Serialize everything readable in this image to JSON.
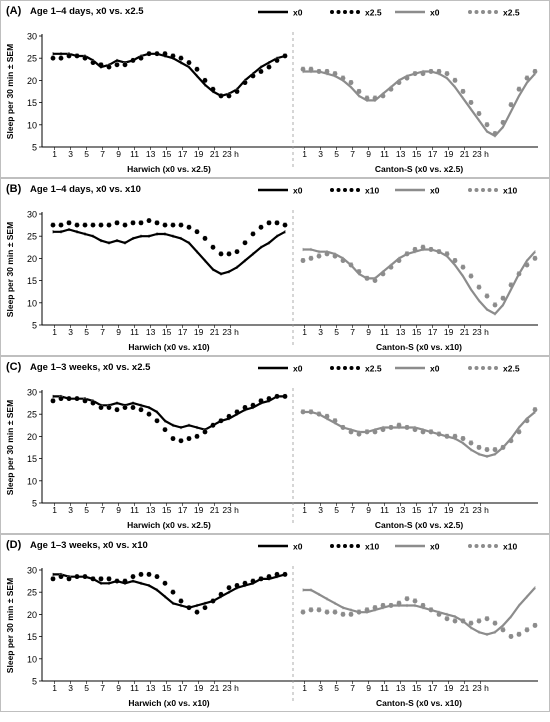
{
  "colors": {
    "black_series": "#000000",
    "gray_series": "#8c8c8c",
    "frame": "#bfbfbf"
  },
  "chart_data": [
    {
      "type": "line",
      "panel": "(A)",
      "title": "Age 1–4 days, x0 vs. x2.5",
      "ylabel": "Sleep per 30 min ± SEM",
      "ylim": [
        5,
        30
      ],
      "yticks": [
        5,
        10,
        15,
        20,
        25,
        30
      ],
      "x_ticklabels": [
        "1",
        "3",
        "5",
        "7",
        "9",
        "11",
        "13",
        "15",
        "17",
        "19",
        "21",
        "23 h"
      ],
      "grid": false,
      "legend_position": "top-right",
      "legend": [
        "x0",
        "x2.5",
        "x0",
        "x2.5"
      ],
      "left": {
        "xlabel": "Harwich (x0 vs. x2.5)",
        "series": [
          {
            "name": "x0",
            "style": "black-line",
            "values": [
              26,
              26,
              26,
              25.5,
              25.5,
              24.5,
              23,
              23.5,
              24.5,
              24,
              24.5,
              25.5,
              26,
              26,
              25.5,
              25,
              24,
              23,
              21,
              19,
              17.5,
              16.5,
              17,
              18,
              20,
              21.5,
              23,
              24,
              25,
              25.5
            ]
          },
          {
            "name": "x2.5",
            "style": "black-dots",
            "values": [
              25,
              25,
              25.5,
              25.5,
              25,
              24,
              23.5,
              23,
              23.5,
              23.5,
              24.5,
              25,
              26,
              26,
              26,
              25.5,
              25,
              24,
              22.5,
              20,
              18,
              16.5,
              16.5,
              17.5,
              19.5,
              21,
              22,
              23,
              24.5,
              25.5
            ]
          }
        ]
      },
      "right": {
        "xlabel": "Canton-S (x0 vs. x2.5)",
        "series": [
          {
            "name": "x0",
            "style": "gray-line",
            "values": [
              22,
              22,
              22,
              21.5,
              21,
              20,
              18.5,
              16.5,
              15.5,
              15.5,
              17,
              18.5,
              20,
              21,
              21.5,
              22,
              22,
              21.5,
              20.5,
              18.5,
              16,
              13.5,
              11,
              8.5,
              7.5,
              9.5,
              13,
              16.5,
              19.5,
              21.5
            ]
          },
          {
            "name": "x2.5",
            "style": "gray-dots",
            "values": [
              22.5,
              22.5,
              22,
              22,
              21.5,
              20.5,
              19.5,
              17.5,
              16,
              16,
              16.5,
              18,
              19.5,
              20.5,
              21.5,
              21.5,
              22,
              22,
              21.5,
              20,
              17.5,
              15,
              12.5,
              10,
              8,
              10.5,
              14.5,
              18,
              20.5,
              22
            ]
          }
        ]
      }
    },
    {
      "type": "line",
      "panel": "(B)",
      "title": "Age 1–4 days, x0 vs. x10",
      "ylabel": "Sleep per 30 min ± SEM",
      "ylim": [
        5,
        30
      ],
      "yticks": [
        5,
        10,
        15,
        20,
        25,
        30
      ],
      "x_ticklabels": [
        "1",
        "3",
        "5",
        "7",
        "9",
        "11",
        "13",
        "15",
        "17",
        "19",
        "21",
        "23 h"
      ],
      "grid": false,
      "legend_position": "top-right",
      "legend": [
        "x0",
        "x10",
        "x0",
        "x10"
      ],
      "left": {
        "xlabel": "Harwich (x0 vs. x10)",
        "series": [
          {
            "name": "x0",
            "style": "black-line",
            "values": [
              26,
              26,
              26.5,
              26,
              25.5,
              25,
              24,
              23.5,
              24,
              23.5,
              24.5,
              25,
              25,
              25.5,
              25.5,
              25,
              24.5,
              23.5,
              21.5,
              19.5,
              17.5,
              16.5,
              17,
              18,
              19.5,
              21,
              22.5,
              23.5,
              25,
              26
            ]
          },
          {
            "name": "x10",
            "style": "black-dots",
            "values": [
              27.5,
              27.5,
              28,
              27.5,
              27.5,
              27.5,
              27.5,
              27.5,
              28,
              27.5,
              28,
              28,
              28.5,
              28,
              27.5,
              27.5,
              27.5,
              27,
              26,
              24.5,
              22.5,
              21,
              21,
              21.5,
              23.5,
              25.5,
              27,
              28,
              28,
              27.5
            ]
          }
        ]
      },
      "right": {
        "xlabel": "Canton-S (x0 vs. x10)",
        "series": [
          {
            "name": "x0",
            "style": "gray-line",
            "values": [
              22,
              22,
              21.5,
              21.5,
              21,
              20,
              18.5,
              16.5,
              15.5,
              15.5,
              17,
              18.5,
              20,
              21,
              21.5,
              22,
              22,
              21.5,
              20.5,
              18.5,
              16,
              13,
              10.5,
              8.5,
              7.5,
              9.5,
              13,
              16.5,
              19.5,
              21.5
            ]
          },
          {
            "name": "x10",
            "style": "gray-dots",
            "values": [
              19.5,
              20,
              20.5,
              21,
              20.5,
              19.5,
              18.5,
              17,
              15.5,
              15,
              16.5,
              18,
              19.5,
              21,
              22,
              22.5,
              22,
              21.5,
              21,
              19.5,
              18,
              16,
              13.5,
              11.5,
              9.5,
              11,
              14,
              16.5,
              18.5,
              20
            ]
          }
        ]
      }
    },
    {
      "type": "line",
      "panel": "(C)",
      "title": "Age 1–3 weeks, x0 vs. x2.5",
      "ylabel": "Sleep per 30 min ± SEM",
      "ylim": [
        5,
        30
      ],
      "yticks": [
        5,
        10,
        15,
        20,
        25,
        30
      ],
      "x_ticklabels": [
        "1",
        "3",
        "5",
        "7",
        "9",
        "11",
        "13",
        "15",
        "17",
        "19",
        "21",
        "23 h"
      ],
      "grid": false,
      "legend_position": "top-right",
      "legend": [
        "x0",
        "x2.5",
        "x0",
        "x2.5"
      ],
      "left": {
        "xlabel": "Harwich (x0 vs. x2.5)",
        "series": [
          {
            "name": "x0",
            "style": "black-line",
            "values": [
              29,
              29,
              28.5,
              28.5,
              28.5,
              28,
              27,
              27,
              27.5,
              27,
              27.5,
              27,
              26.5,
              25.5,
              23.5,
              22.5,
              22,
              22.5,
              22,
              21.5,
              22.5,
              23.5,
              24,
              25,
              26,
              26.5,
              27.5,
              28,
              29,
              29
            ]
          },
          {
            "name": "x2.5",
            "style": "black-dots",
            "values": [
              28,
              28.5,
              28.5,
              28.5,
              28,
              27.5,
              26.5,
              26.5,
              26,
              26.5,
              26.5,
              26,
              25,
              23.5,
              21.5,
              19.5,
              19,
              19.5,
              20,
              21,
              22.5,
              23.5,
              24.5,
              25.5,
              26.5,
              27,
              28,
              28.5,
              29,
              29
            ]
          }
        ]
      },
      "right": {
        "xlabel": "Canton-S (x0 vs. x2.5)",
        "series": [
          {
            "name": "x0",
            "style": "gray-line",
            "values": [
              25.5,
              25.5,
              25,
              24,
              23,
              22,
              21.5,
              21,
              21,
              21.5,
              22,
              22,
              22,
              22,
              22,
              21.5,
              21,
              20.5,
              20,
              19.5,
              18.5,
              17,
              16,
              15.5,
              16,
              17.5,
              19.5,
              22,
              24,
              25.5
            ]
          },
          {
            "name": "x2.5",
            "style": "gray-dots",
            "values": [
              25.5,
              25.5,
              25,
              24.5,
              23.5,
              22,
              21,
              20.5,
              21,
              21,
              21.5,
              22,
              22.5,
              22,
              21.5,
              21,
              21,
              20.5,
              20,
              20,
              19.5,
              18.5,
              17.5,
              17,
              17,
              17.5,
              19,
              21,
              23.5,
              26
            ]
          }
        ]
      }
    },
    {
      "type": "line",
      "panel": "(D)",
      "title": "Age 1–3 weeks, x0 vs. x10",
      "ylabel": "Sleep per 30 min ± SEM",
      "ylim": [
        5,
        30
      ],
      "yticks": [
        5,
        10,
        15,
        20,
        25,
        30
      ],
      "x_ticklabels": [
        "1",
        "3",
        "5",
        "7",
        "9",
        "11",
        "13",
        "15",
        "17",
        "19",
        "21",
        "23 h"
      ],
      "grid": false,
      "legend_position": "top-right",
      "legend": [
        "x0",
        "x10",
        "x0",
        "x10"
      ],
      "left": {
        "xlabel": "Harwich (x0 vs. x10)",
        "series": [
          {
            "name": "x0",
            "style": "black-line",
            "values": [
              29,
              29,
              28.5,
              28.5,
              28.5,
              28,
              27,
              27,
              27.5,
              27,
              27.5,
              27,
              26.5,
              25.5,
              24,
              22.5,
              22,
              21.5,
              22,
              22.5,
              23,
              24,
              25,
              26,
              26.5,
              27,
              28,
              28,
              28.5,
              29
            ]
          },
          {
            "name": "x10",
            "style": "black-dots",
            "values": [
              28,
              28.5,
              28,
              28.5,
              28.5,
              28,
              28,
              28,
              27.5,
              27.5,
              28.5,
              29,
              29,
              28.5,
              27,
              25,
              23,
              21.5,
              20.5,
              21.5,
              23,
              24.5,
              26,
              26.5,
              27,
              27.5,
              28,
              28.5,
              29,
              29
            ]
          }
        ]
      },
      "right": {
        "xlabel": "Canton-S (x0 vs. x10)",
        "series": [
          {
            "name": "x0",
            "style": "gray-line",
            "values": [
              25.5,
              25.5,
              24.5,
              23.5,
              22.5,
              21.5,
              21,
              20.5,
              20.5,
              21,
              21.5,
              22,
              22,
              22,
              22,
              21.5,
              21,
              20.5,
              20,
              19.5,
              18.5,
              17,
              16,
              15.5,
              16,
              17.5,
              19.5,
              22,
              24,
              26
            ]
          },
          {
            "name": "x10",
            "style": "gray-dots",
            "values": [
              20.5,
              21,
              21,
              20.5,
              20.5,
              20,
              20,
              20.5,
              21,
              21.5,
              22,
              22,
              22.5,
              23.5,
              23,
              22,
              21,
              20,
              19,
              18.5,
              18.5,
              18,
              18.5,
              19,
              18,
              16.5,
              15,
              15.5,
              16.5,
              17.5
            ]
          }
        ]
      }
    }
  ]
}
